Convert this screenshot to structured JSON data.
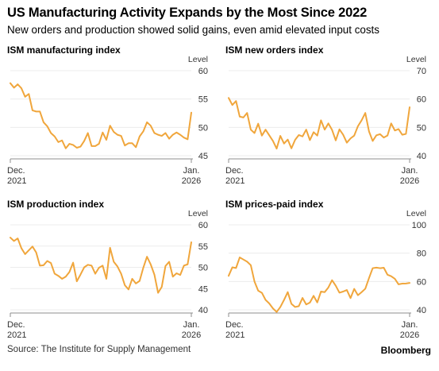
{
  "header": {
    "title": "US Manufacturing Activity Expands by the Most Since 2022",
    "subtitle": "New orders and production showed solid gains, even amid elevated input costs"
  },
  "footer": {
    "source": "Source: The Institute for Supply Management",
    "brand": "Bloomberg"
  },
  "colors": {
    "line": "#f0a63c",
    "axis": "#8c8c8c",
    "grid": "#ececec"
  },
  "chart_data": [
    {
      "type": "line",
      "title": "ISM manufacturing index",
      "ylabel": "Level",
      "ylim": [
        45,
        60
      ],
      "yticks": [
        45,
        50,
        55,
        60
      ],
      "xticklabels": [
        [
          "Dec.",
          "2021"
        ],
        [
          "Jan.",
          "2026"
        ]
      ],
      "x": [
        "2021-12",
        "2022-01",
        "2022-02",
        "2022-03",
        "2022-04",
        "2022-05",
        "2022-06",
        "2022-07",
        "2022-08",
        "2022-09",
        "2022-10",
        "2022-11",
        "2022-12",
        "2023-01",
        "2023-02",
        "2023-03",
        "2023-04",
        "2023-05",
        "2023-06",
        "2023-07",
        "2023-08",
        "2023-09",
        "2023-10",
        "2023-11",
        "2023-12",
        "2024-01",
        "2024-02",
        "2024-03",
        "2024-04",
        "2024-05",
        "2024-06",
        "2024-07",
        "2024-08",
        "2024-09",
        "2024-10",
        "2024-11",
        "2024-12",
        "2025-01",
        "2025-02",
        "2025-03",
        "2025-04",
        "2025-05",
        "2025-06",
        "2025-07",
        "2025-08",
        "2025-09",
        "2025-10",
        "2025-11",
        "2025-12",
        "2026-01"
      ],
      "series": [
        {
          "values": [
            57.8,
            57.0,
            57.6,
            56.9,
            55.4,
            55.9,
            53.0,
            52.8,
            52.8,
            50.9,
            50.2,
            49.0,
            48.4,
            47.4,
            47.7,
            46.3,
            47.1,
            46.9,
            46.4,
            46.6,
            47.6,
            49.0,
            46.7,
            46.7,
            47.1,
            49.1,
            47.8,
            50.3,
            49.2,
            48.7,
            48.5,
            46.8,
            47.2,
            47.2,
            46.5,
            48.4,
            49.3,
            50.9,
            50.3,
            49.0,
            48.7,
            48.5,
            49.0,
            48.0,
            48.7,
            49.1,
            48.7,
            48.2,
            47.9,
            52.6
          ]
        }
      ]
    },
    {
      "type": "line",
      "title": "ISM new orders index",
      "ylabel": "Level",
      "ylim": [
        40,
        70
      ],
      "yticks": [
        40,
        50,
        60,
        70
      ],
      "xticklabels": [
        [
          "Dec.",
          "2021"
        ],
        [
          "Jan.",
          "2026"
        ]
      ],
      "x": [
        "2021-12",
        "2022-01",
        "2022-02",
        "2022-03",
        "2022-04",
        "2022-05",
        "2022-06",
        "2022-07",
        "2022-08",
        "2022-09",
        "2022-10",
        "2022-11",
        "2022-12",
        "2023-01",
        "2023-02",
        "2023-03",
        "2023-04",
        "2023-05",
        "2023-06",
        "2023-07",
        "2023-08",
        "2023-09",
        "2023-10",
        "2023-11",
        "2023-12",
        "2024-01",
        "2024-02",
        "2024-03",
        "2024-04",
        "2024-05",
        "2024-06",
        "2024-07",
        "2024-08",
        "2024-09",
        "2024-10",
        "2024-11",
        "2024-12",
        "2025-01",
        "2025-02",
        "2025-03",
        "2025-04",
        "2025-05",
        "2025-06",
        "2025-07",
        "2025-08",
        "2025-09",
        "2025-10",
        "2025-11",
        "2025-12",
        "2026-01"
      ],
      "series": [
        {
          "values": [
            60.4,
            57.9,
            59.3,
            53.8,
            53.5,
            55.1,
            49.2,
            48.0,
            51.3,
            47.1,
            49.2,
            47.2,
            45.2,
            42.5,
            47.0,
            44.3,
            45.7,
            42.6,
            45.6,
            47.3,
            46.8,
            49.2,
            45.5,
            48.3,
            47.1,
            52.5,
            49.2,
            51.4,
            49.1,
            45.4,
            49.3,
            47.4,
            44.6,
            46.1,
            47.1,
            50.4,
            52.5,
            55.1,
            48.6,
            45.2,
            47.2,
            47.6,
            46.4,
            47.1,
            51.4,
            48.9,
            49.4,
            47.4,
            47.7,
            57.1
          ]
        }
      ]
    },
    {
      "type": "line",
      "title": "ISM production index",
      "ylabel": "Level",
      "ylim": [
        40,
        60
      ],
      "yticks": [
        40,
        45,
        50,
        55,
        60
      ],
      "xticklabels": [
        [
          "Dec.",
          "2021"
        ],
        [
          "Jan.",
          "2026"
        ]
      ],
      "x": [
        "2021-12",
        "2022-01",
        "2022-02",
        "2022-03",
        "2022-04",
        "2022-05",
        "2022-06",
        "2022-07",
        "2022-08",
        "2022-09",
        "2022-10",
        "2022-11",
        "2022-12",
        "2023-01",
        "2023-02",
        "2023-03",
        "2023-04",
        "2023-05",
        "2023-06",
        "2023-07",
        "2023-08",
        "2023-09",
        "2023-10",
        "2023-11",
        "2023-12",
        "2024-01",
        "2024-02",
        "2024-03",
        "2024-04",
        "2024-05",
        "2024-06",
        "2024-07",
        "2024-08",
        "2024-09",
        "2024-10",
        "2024-11",
        "2024-12",
        "2025-01",
        "2025-02",
        "2025-03",
        "2025-04",
        "2025-05",
        "2025-06",
        "2025-07",
        "2025-08",
        "2025-09",
        "2025-10",
        "2025-11",
        "2025-12",
        "2026-01"
      ],
      "series": [
        {
          "values": [
            57.0,
            56.2,
            56.8,
            54.5,
            53.1,
            54.0,
            54.9,
            53.5,
            50.4,
            50.5,
            51.5,
            51.0,
            48.5,
            48.0,
            47.3,
            47.8,
            48.9,
            51.1,
            46.7,
            48.3,
            50.0,
            50.6,
            50.4,
            48.5,
            49.9,
            50.4,
            47.3,
            54.6,
            51.3,
            50.2,
            48.5,
            45.8,
            44.8,
            47.3,
            46.2,
            46.8,
            49.9,
            52.5,
            50.7,
            48.3,
            44.0,
            45.4,
            50.3,
            51.3,
            47.8,
            48.6,
            48.2,
            50.4,
            50.7,
            55.9
          ]
        }
      ]
    },
    {
      "type": "line",
      "title": "ISM prices-paid index",
      "ylabel": "Level",
      "ylim": [
        40,
        100
      ],
      "yticks": [
        40,
        60,
        80,
        100
      ],
      "xticklabels": [
        [
          "Dec.",
          "2021"
        ],
        [
          "Jan.",
          "2026"
        ]
      ],
      "x": [
        "2021-12",
        "2022-01",
        "2022-02",
        "2022-03",
        "2022-04",
        "2022-05",
        "2022-06",
        "2022-07",
        "2022-08",
        "2022-09",
        "2022-10",
        "2022-11",
        "2022-12",
        "2023-01",
        "2023-02",
        "2023-03",
        "2023-04",
        "2023-05",
        "2023-06",
        "2023-07",
        "2023-08",
        "2023-09",
        "2023-10",
        "2023-11",
        "2023-12",
        "2024-01",
        "2024-02",
        "2024-03",
        "2024-04",
        "2024-05",
        "2024-06",
        "2024-07",
        "2024-08",
        "2024-09",
        "2024-10",
        "2024-11",
        "2024-12",
        "2025-01",
        "2025-02",
        "2025-03",
        "2025-04",
        "2025-05",
        "2025-06",
        "2025-07",
        "2025-08",
        "2025-09",
        "2025-10",
        "2025-11",
        "2025-12",
        "2026-01"
      ],
      "series": [
        {
          "values": [
            64.0,
            70.0,
            69.5,
            77.0,
            75.5,
            74.0,
            71.5,
            60.0,
            53.5,
            52.0,
            47.0,
            44.5,
            41.0,
            38.5,
            42.0,
            47.0,
            52.5,
            44.2,
            42.0,
            42.6,
            48.4,
            43.8,
            45.1,
            49.9,
            45.2,
            52.9,
            52.5,
            55.8,
            60.9,
            57.0,
            52.1,
            52.9,
            54.0,
            48.3,
            54.8,
            50.3,
            52.5,
            54.9,
            62.4,
            69.4,
            69.8,
            69.4,
            69.7,
            64.8,
            63.7,
            61.9,
            58.0,
            58.5,
            58.6,
            59.0
          ]
        }
      ]
    }
  ]
}
